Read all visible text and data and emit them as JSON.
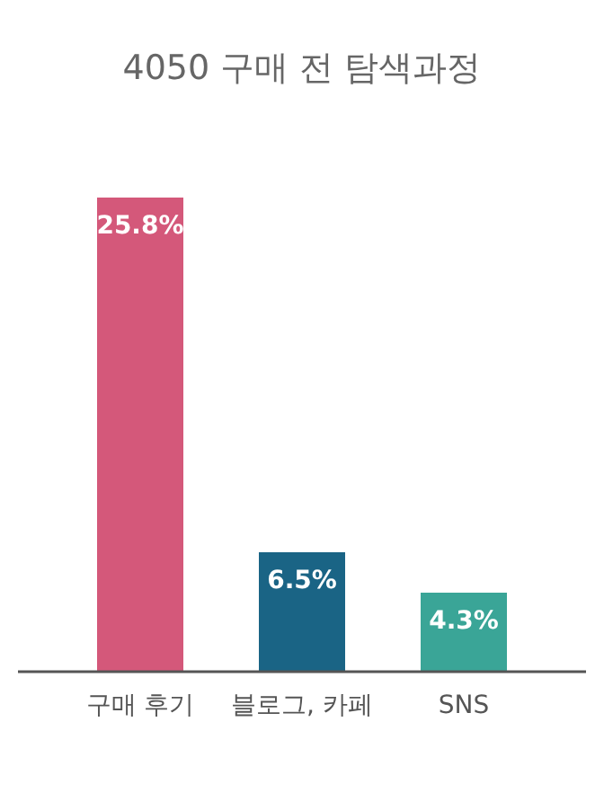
{
  "chart_data": {
    "type": "bar",
    "title": "4050 구매 전 탐색과정",
    "categories": [
      "구매 후기",
      "블로그, 카페",
      "SNS"
    ],
    "values": [
      25.8,
      6.5,
      4.3
    ],
    "colors": [
      "#d4587a",
      "#1a6485",
      "#3aa597"
    ],
    "value_labels": [
      "25.8%",
      "6.5%",
      "4.3%"
    ]
  }
}
